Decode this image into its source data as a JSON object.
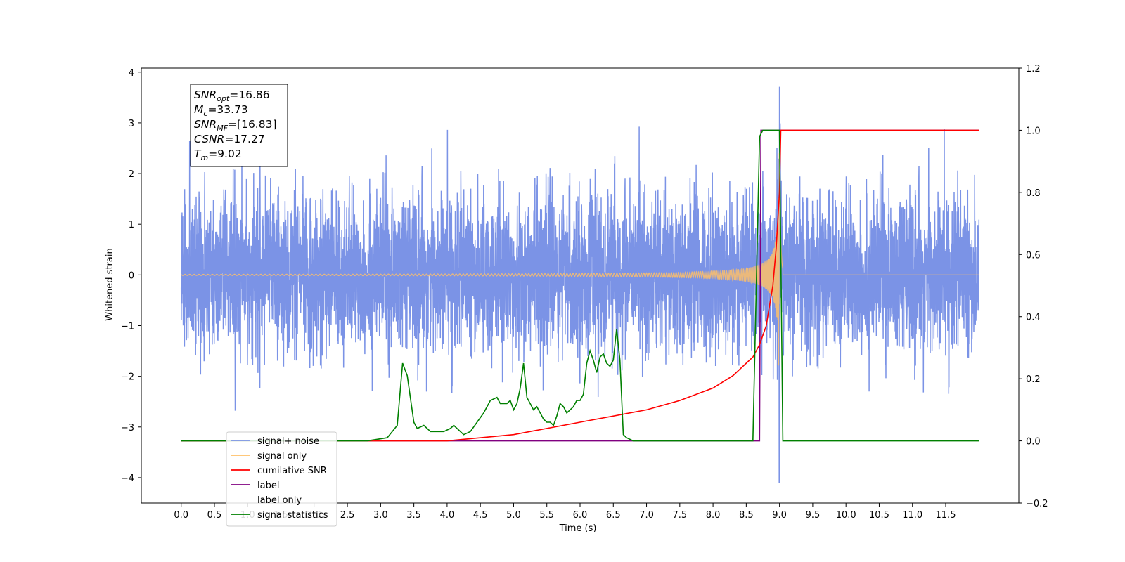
{
  "chart_data": {
    "type": "line",
    "title": "",
    "xlabel": "Time (s)",
    "ylabel": "Whitened strain",
    "y2label": "",
    "xlim": [
      -0.6,
      12.6
    ],
    "ylim": [
      -4.5,
      4.08
    ],
    "y2lim": [
      -0.2,
      1.2
    ],
    "xticks": [
      "0.0",
      "0.5",
      "1.0",
      "1.5",
      "2.0",
      "2.5",
      "3.0",
      "3.5",
      "4.0",
      "4.5",
      "5.0",
      "5.5",
      "6.0",
      "6.5",
      "7.0",
      "7.5",
      "8.0",
      "8.5",
      "9.0",
      "9.5",
      "10.0",
      "10.5",
      "11.0",
      "11.5"
    ],
    "yticks": [
      "4",
      "3",
      "2",
      "1",
      "0",
      "−1",
      "−2",
      "−3",
      "−4"
    ],
    "y2ticks": [
      "1.2",
      "1.0",
      "0.8",
      "0.6",
      "0.4",
      "0.2",
      "0.0",
      "−0.2"
    ],
    "grid": false,
    "legend_position": "lower-left",
    "annotation": {
      "lines": [
        {
          "base": "SNR",
          "sub": "opt",
          "value": "=16.86"
        },
        {
          "base": "M",
          "sub": "c",
          "value": "=33.73"
        },
        {
          "base": "SNR",
          "sub": "MF",
          "value": "=[16.83]"
        },
        {
          "base": "CSNR",
          "sub": "",
          "value": "=17.27"
        },
        {
          "base": "T",
          "sub": "m",
          "value": "=9.02"
        }
      ]
    },
    "series": [
      {
        "name": "signal+ noise",
        "axis": "left",
        "color": "#7b93e6",
        "description": "noisy whitened strain, approx +/-1.6 typical, peaks to 3.7 near t=9.0",
        "t_range": [
          0.0,
          12.0
        ],
        "noise_sigma": 0.75,
        "peak": {
          "x": 9.0,
          "max": 3.7,
          "min": -4.1
        }
      },
      {
        "name": "signal only",
        "axis": "left",
        "color": "#ffc067",
        "description": "chirp waveform growing in amplitude toward merger at t~9.0",
        "t_range": [
          0.0,
          12.0
        ],
        "merger_time": 9.0,
        "peak_amplitude": 3.25
      },
      {
        "name": "cumilative SNR",
        "axis": "right",
        "color": "#ff0000",
        "x": [
          0.0,
          4.0,
          5.0,
          6.0,
          7.0,
          7.5,
          8.0,
          8.3,
          8.5,
          8.6,
          8.7,
          8.8,
          8.9,
          8.95,
          9.0,
          9.02,
          9.05,
          12.0
        ],
        "y": [
          0.0,
          0.0,
          0.02,
          0.06,
          0.1,
          0.13,
          0.17,
          0.21,
          0.25,
          0.27,
          0.31,
          0.37,
          0.5,
          0.62,
          0.8,
          1.0,
          1.0,
          1.0
        ]
      },
      {
        "name": "label",
        "axis": "right",
        "color": "#800080",
        "x": [
          0.0,
          8.7,
          8.72,
          12.0
        ],
        "y": [
          0.0,
          0.0,
          1.0,
          1.0
        ]
      },
      {
        "name": "label only",
        "axis": "right",
        "color": "#808080",
        "hidden": true,
        "x": [],
        "y": []
      },
      {
        "name": "signal statistics",
        "axis": "right",
        "color": "#008000",
        "x": [
          0.0,
          2.8,
          3.1,
          3.25,
          3.33,
          3.4,
          3.5,
          3.55,
          3.65,
          3.75,
          3.85,
          3.95,
          4.05,
          4.1,
          4.15,
          4.25,
          4.35,
          4.45,
          4.55,
          4.65,
          4.75,
          4.8,
          4.9,
          4.95,
          5.0,
          5.05,
          5.1,
          5.15,
          5.2,
          5.25,
          5.3,
          5.35,
          5.4,
          5.45,
          5.5,
          5.55,
          5.6,
          5.65,
          5.7,
          5.75,
          5.8,
          5.85,
          5.9,
          5.95,
          6.0,
          6.05,
          6.1,
          6.15,
          6.2,
          6.25,
          6.3,
          6.35,
          6.4,
          6.45,
          6.5,
          6.55,
          6.6,
          6.65,
          6.7,
          6.8,
          7.0,
          8.0,
          8.6,
          8.7,
          8.75,
          8.8,
          8.9,
          9.0,
          9.05,
          9.1,
          12.0
        ],
        "y": [
          0.0,
          0.0,
          0.01,
          0.05,
          0.25,
          0.21,
          0.06,
          0.04,
          0.05,
          0.03,
          0.03,
          0.03,
          0.04,
          0.05,
          0.04,
          0.02,
          0.03,
          0.06,
          0.09,
          0.13,
          0.14,
          0.12,
          0.12,
          0.13,
          0.1,
          0.12,
          0.17,
          0.25,
          0.14,
          0.12,
          0.1,
          0.11,
          0.09,
          0.07,
          0.06,
          0.06,
          0.05,
          0.08,
          0.12,
          0.11,
          0.09,
          0.1,
          0.11,
          0.13,
          0.13,
          0.15,
          0.25,
          0.29,
          0.26,
          0.22,
          0.27,
          0.28,
          0.25,
          0.24,
          0.26,
          0.36,
          0.26,
          0.02,
          0.01,
          0.0,
          0.0,
          0.0,
          0.0,
          0.98,
          1.0,
          1.0,
          1.0,
          1.0,
          0.0,
          0.0,
          0.0
        ]
      }
    ]
  }
}
